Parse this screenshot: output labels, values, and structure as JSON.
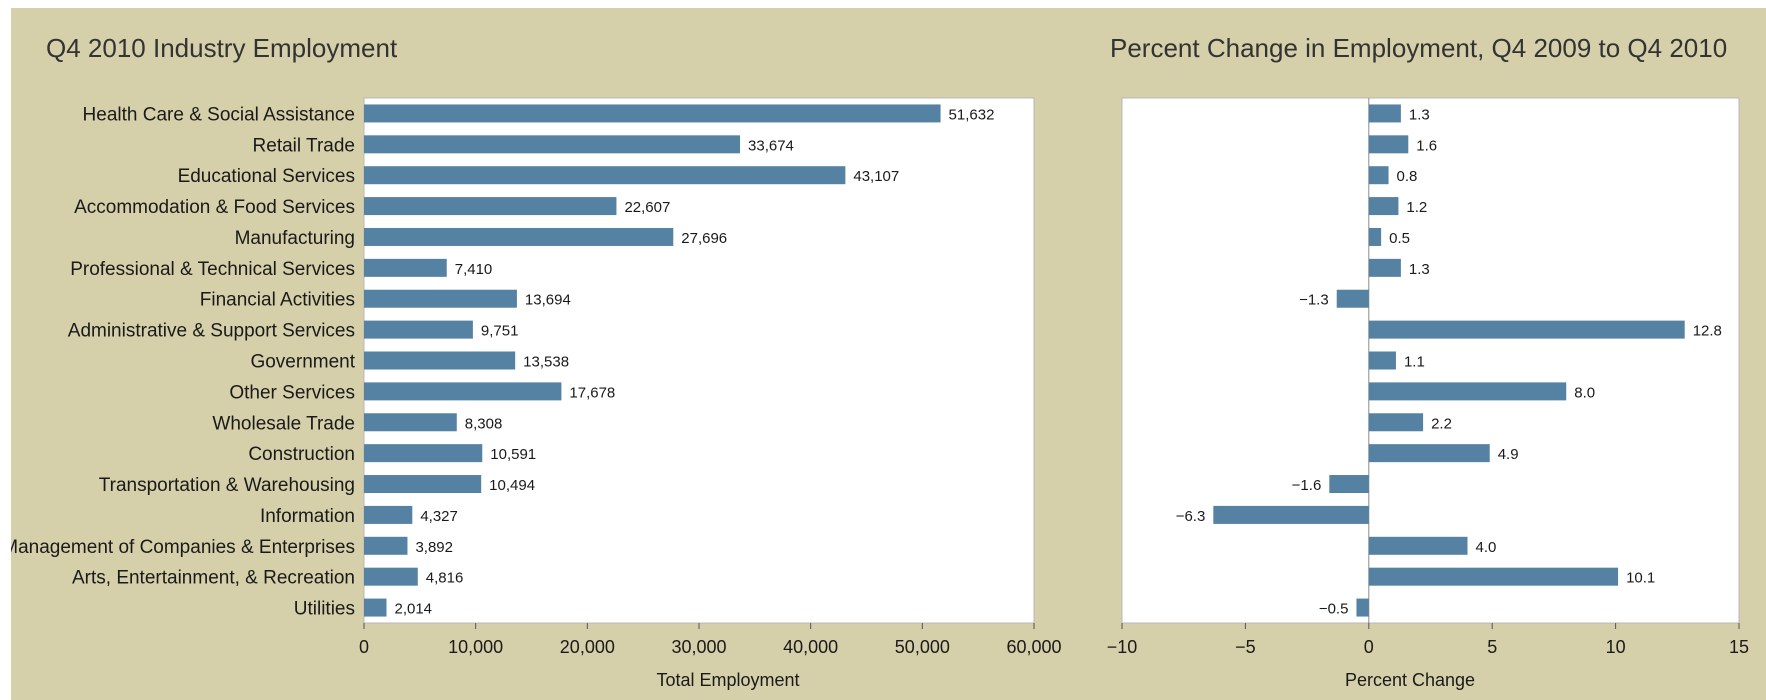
{
  "colors": {
    "background": "#d5cfaa",
    "plot_area": "#ffffff",
    "bar": "#5582a3",
    "text": "#1a1a1a",
    "title": "#333333"
  },
  "chart_data": [
    {
      "type": "bar",
      "orientation": "horizontal",
      "title": "Q4 2010 Industry Employment",
      "xlabel": "Total Employment",
      "ylabel": "",
      "xlim": [
        0,
        60000
      ],
      "x_ticks": [
        "0",
        "10,000",
        "20,000",
        "30,000",
        "40,000",
        "50,000",
        "60,000"
      ],
      "grid": false,
      "categories": [
        "Health Care & Social Assistance",
        "Retail Trade",
        "Educational Services",
        "Accommodation & Food Services",
        "Manufacturing",
        "Professional & Technical Services",
        "Financial Activities",
        "Administrative & Support Services",
        "Government",
        "Other Services",
        "Wholesale Trade",
        "Construction",
        "Transportation & Warehousing",
        "Information",
        "Management of Companies & Enterprises",
        "Arts, Entertainment, & Recreation",
        "Utilities"
      ],
      "values": [
        51632,
        33674,
        43107,
        22607,
        27696,
        7410,
        13694,
        9751,
        13538,
        17678,
        8308,
        10591,
        10494,
        4327,
        3892,
        4816,
        2014
      ],
      "labels": [
        "51,632",
        "33,674",
        "43,107",
        "22,607",
        "27,696",
        "7,410",
        "13,694",
        "9,751",
        "13,538",
        "17,678",
        "8,308",
        "10,591",
        "10,494",
        "4,327",
        "3,892",
        "4,816",
        "2,014"
      ]
    },
    {
      "type": "bar",
      "orientation": "horizontal",
      "title": "Percent Change in Employment, Q4 2009 to Q4 2010",
      "xlabel": "Percent Change",
      "ylabel": "",
      "xlim": [
        -10,
        15
      ],
      "x_ticks": [
        "−10",
        "−5",
        "0",
        "5",
        "10",
        "15"
      ],
      "grid": false,
      "zero_line": true,
      "values": [
        1.3,
        1.6,
        0.8,
        1.2,
        0.5,
        1.3,
        -1.3,
        12.8,
        1.1,
        8.0,
        2.2,
        4.9,
        -1.6,
        -6.3,
        4.0,
        10.1,
        -0.5
      ],
      "labels": [
        "1.3",
        "1.6",
        "0.8",
        "1.2",
        "0.5",
        "1.3",
        "−1.3",
        "12.8",
        "1.1",
        "8.0",
        "2.2",
        "4.9",
        "−1.6",
        "−6.3",
        "4.0",
        "10.1",
        "−0.5"
      ]
    }
  ]
}
